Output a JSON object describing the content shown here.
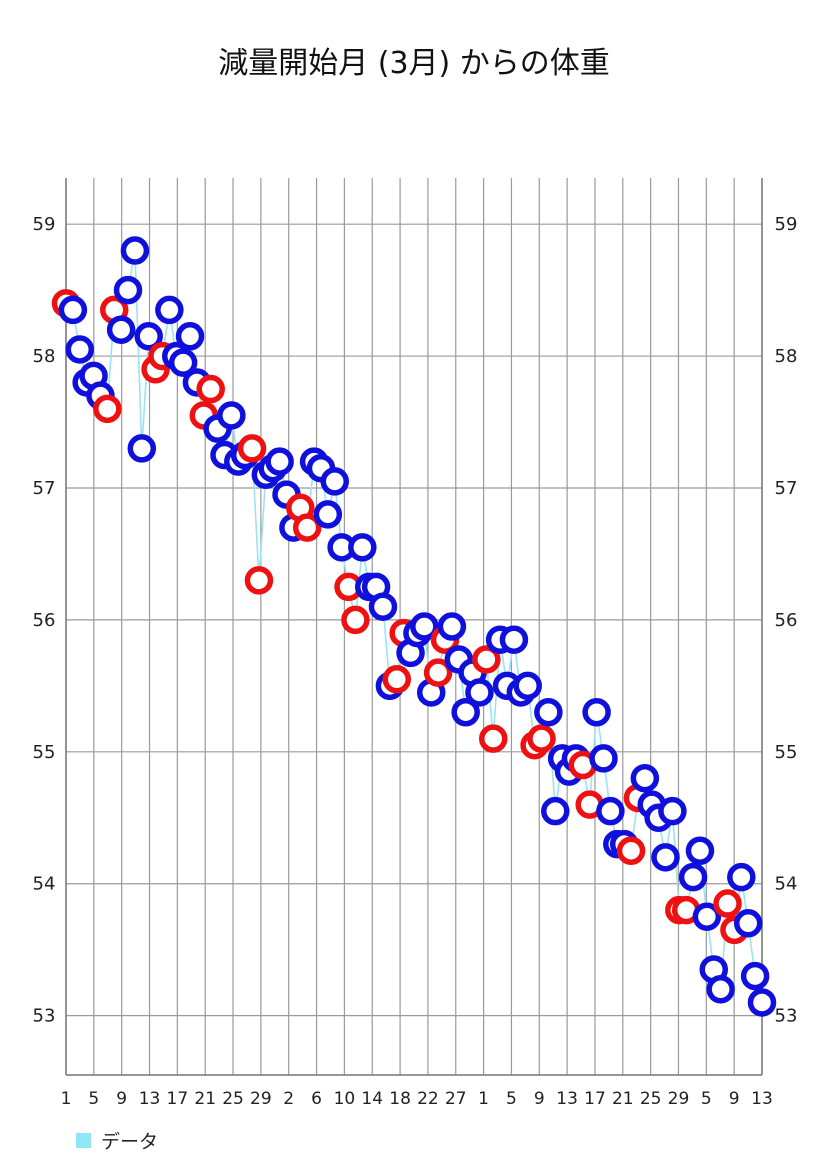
{
  "chart_data": {
    "type": "scatter",
    "title": "減量開始月 (3月) からの体重",
    "xlabel": "",
    "ylabel": "",
    "ylim": [
      52.55,
      59.35
    ],
    "yticks": [
      53,
      54,
      55,
      56,
      57,
      58,
      59
    ],
    "grid": true,
    "legend_position": "bottom-left",
    "x_tick_labels": [
      "1",
      "5",
      "9",
      "13",
      "17",
      "21",
      "25",
      "29",
      "2",
      "6",
      "10",
      "14",
      "18",
      "22",
      "27",
      "1",
      "5",
      "9",
      "13",
      "17",
      "21",
      "25",
      "29",
      "5",
      "9",
      "13"
    ],
    "series": [
      {
        "name": "データ",
        "line_color": "#9be3f2",
        "points": [
          {
            "y": 58.4,
            "c": "r"
          },
          {
            "y": 58.35,
            "c": "b"
          },
          {
            "y": 58.05,
            "c": "b"
          },
          {
            "y": 57.8,
            "c": "b"
          },
          {
            "y": 57.85,
            "c": "b"
          },
          {
            "y": 57.7,
            "c": "b"
          },
          {
            "y": 57.6,
            "c": "r"
          },
          {
            "y": 58.35,
            "c": "r"
          },
          {
            "y": 58.2,
            "c": "b"
          },
          {
            "y": 58.5,
            "c": "b"
          },
          {
            "y": 58.8,
            "c": "b"
          },
          {
            "y": 57.3,
            "c": "b"
          },
          {
            "y": 58.15,
            "c": "b"
          },
          {
            "y": 57.9,
            "c": "r"
          },
          {
            "y": 58.0,
            "c": "r"
          },
          {
            "y": 58.35,
            "c": "b"
          },
          {
            "y": 58.0,
            "c": "b"
          },
          {
            "y": 57.95,
            "c": "b"
          },
          {
            "y": 58.15,
            "c": "b"
          },
          {
            "y": 57.8,
            "c": "b"
          },
          {
            "y": 57.55,
            "c": "r"
          },
          {
            "y": 57.75,
            "c": "r"
          },
          {
            "y": 57.45,
            "c": "b"
          },
          {
            "y": 57.25,
            "c": "b"
          },
          {
            "y": 57.55,
            "c": "b"
          },
          {
            "y": 57.2,
            "c": "b"
          },
          {
            "y": 57.25,
            "c": "b"
          },
          {
            "y": 57.3,
            "c": "r"
          },
          {
            "y": 56.3,
            "c": "r"
          },
          {
            "y": 57.1,
            "c": "b"
          },
          {
            "y": 57.15,
            "c": "b"
          },
          {
            "y": 57.2,
            "c": "b"
          },
          {
            "y": 56.95,
            "c": "b"
          },
          {
            "y": 56.7,
            "c": "b"
          },
          {
            "y": 56.85,
            "c": "r"
          },
          {
            "y": 56.7,
            "c": "r"
          },
          {
            "y": 57.2,
            "c": "b"
          },
          {
            "y": 57.15,
            "c": "b"
          },
          {
            "y": 56.8,
            "c": "b"
          },
          {
            "y": 57.05,
            "c": "b"
          },
          {
            "y": 56.55,
            "c": "b"
          },
          {
            "y": 56.25,
            "c": "r"
          },
          {
            "y": 56.0,
            "c": "r"
          },
          {
            "y": 56.55,
            "c": "b"
          },
          {
            "y": 56.25,
            "c": "b"
          },
          {
            "y": 56.25,
            "c": "b"
          },
          {
            "y": 56.1,
            "c": "b"
          },
          {
            "y": 55.5,
            "c": "b"
          },
          {
            "y": 55.55,
            "c": "r"
          },
          {
            "y": 55.9,
            "c": "r"
          },
          {
            "y": 55.75,
            "c": "b"
          },
          {
            "y": 55.9,
            "c": "b"
          },
          {
            "y": 55.95,
            "c": "b"
          },
          {
            "y": 55.45,
            "c": "b"
          },
          {
            "y": 55.6,
            "c": "r"
          },
          {
            "y": 55.85,
            "c": "r"
          },
          {
            "y": 55.95,
            "c": "b"
          },
          {
            "y": 55.7,
            "c": "b"
          },
          {
            "y": 55.3,
            "c": "b"
          },
          {
            "y": 55.6,
            "c": "b"
          },
          {
            "y": 55.45,
            "c": "b"
          },
          {
            "y": 55.7,
            "c": "r"
          },
          {
            "y": 55.1,
            "c": "r"
          },
          {
            "y": 55.85,
            "c": "b"
          },
          {
            "y": 55.5,
            "c": "b"
          },
          {
            "y": 55.85,
            "c": "b"
          },
          {
            "y": 55.45,
            "c": "b"
          },
          {
            "y": 55.5,
            "c": "b"
          },
          {
            "y": 55.05,
            "c": "r"
          },
          {
            "y": 55.1,
            "c": "r"
          },
          {
            "y": 55.3,
            "c": "b"
          },
          {
            "y": 54.55,
            "c": "b"
          },
          {
            "y": 54.95,
            "c": "b"
          },
          {
            "y": 54.85,
            "c": "b"
          },
          {
            "y": 54.95,
            "c": "b"
          },
          {
            "y": 54.9,
            "c": "r"
          },
          {
            "y": 54.6,
            "c": "r"
          },
          {
            "y": 55.3,
            "c": "b"
          },
          {
            "y": 54.95,
            "c": "b"
          },
          {
            "y": 54.55,
            "c": "b"
          },
          {
            "y": 54.3,
            "c": "b"
          },
          {
            "y": 54.3,
            "c": "b"
          },
          {
            "y": 54.25,
            "c": "r"
          },
          {
            "y": 54.65,
            "c": "r"
          },
          {
            "y": 54.8,
            "c": "b"
          },
          {
            "y": 54.6,
            "c": "b"
          },
          {
            "y": 54.5,
            "c": "b"
          },
          {
            "y": 54.2,
            "c": "b"
          },
          {
            "y": 54.55,
            "c": "b"
          },
          {
            "y": 53.8,
            "c": "r"
          },
          {
            "y": 53.8,
            "c": "r"
          },
          {
            "y": 54.05,
            "c": "b"
          },
          {
            "y": 54.25,
            "c": "b"
          },
          {
            "y": 53.75,
            "c": "b"
          },
          {
            "y": 53.35,
            "c": "b"
          },
          {
            "y": 53.2,
            "c": "b"
          },
          {
            "y": 53.85,
            "c": "r"
          },
          {
            "y": 53.65,
            "c": "r"
          },
          {
            "y": 54.05,
            "c": "b"
          },
          {
            "y": 53.7,
            "c": "b"
          },
          {
            "y": 53.3,
            "c": "b"
          },
          {
            "y": 53.1,
            "c": "b"
          }
        ]
      }
    ],
    "marker_colors": {
      "r": "#ee1111",
      "b": "#1010dd"
    },
    "legend_swatch_color": "#8ee6f7"
  }
}
